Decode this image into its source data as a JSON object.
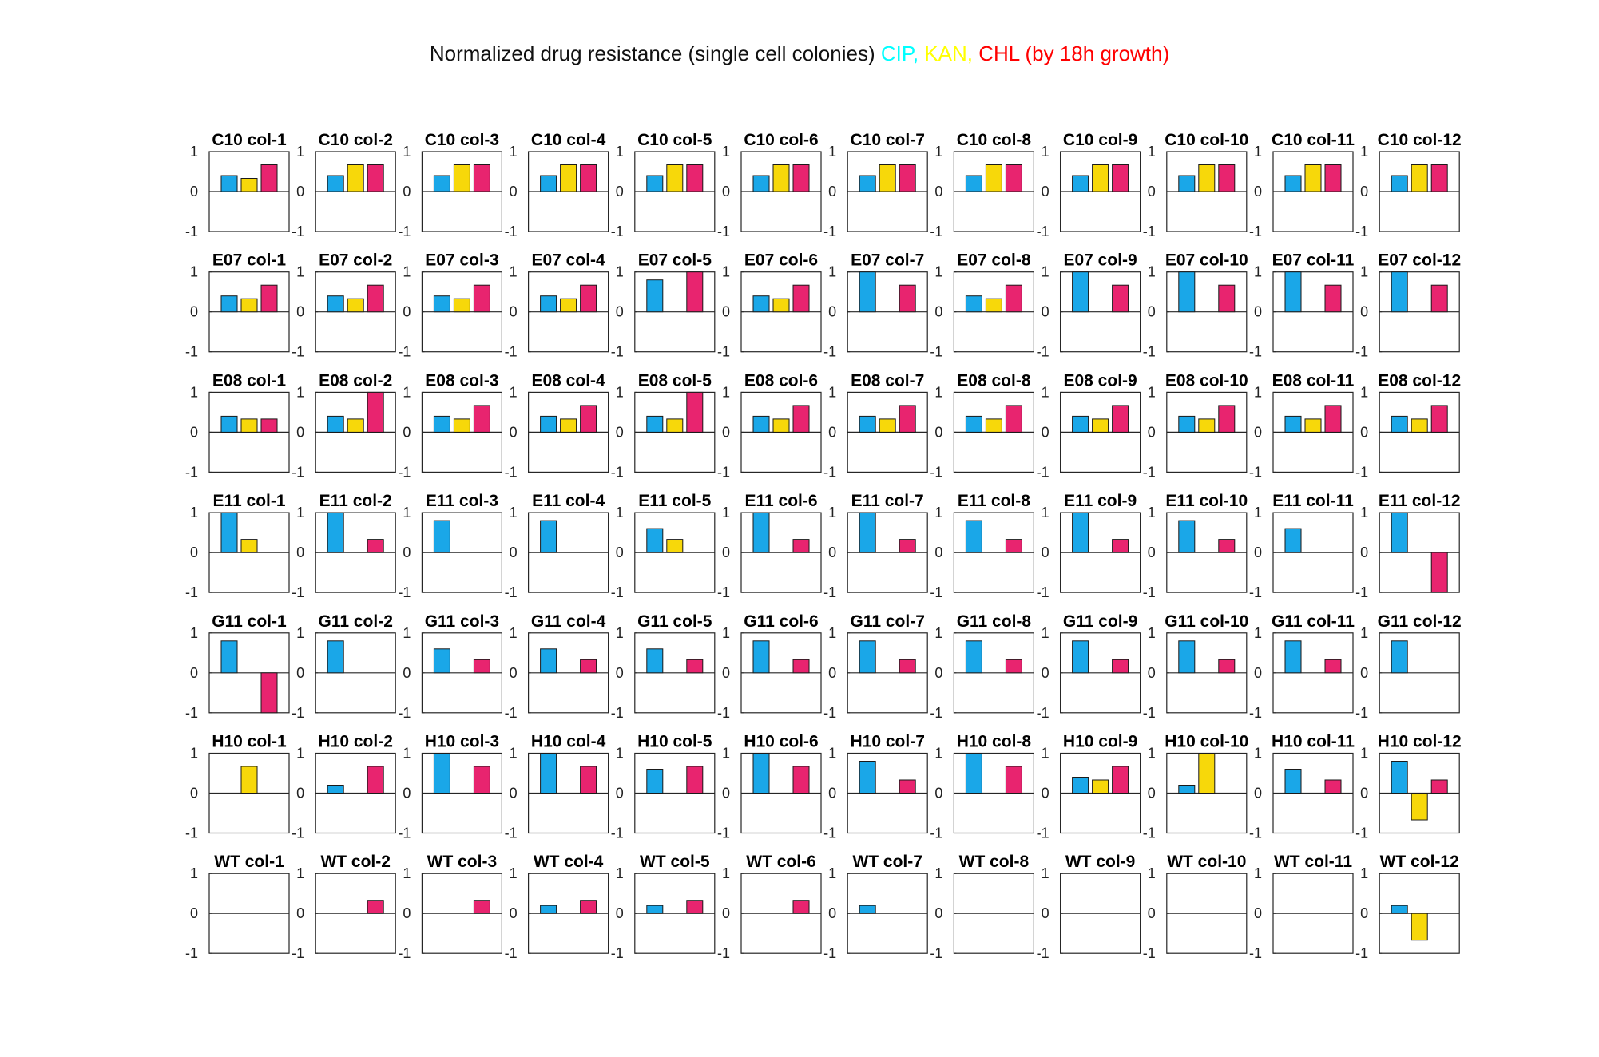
{
  "chart_data": [
    {
      "type": "bar",
      "title_parts": [
        {
          "text": "Normalized drug resistance (single cell colonies) ",
          "color": "#111111"
        },
        {
          "text": "CIP, ",
          "color": "#00ffff"
        },
        {
          "text": "KAN, ",
          "color": "#ffff00"
        },
        {
          "text": "CHL ",
          "color": "#ff0000"
        },
        {
          "text": "(by 18h growth)",
          "color": "#ff0000"
        }
      ],
      "series_colors": [
        "#1aa7e8",
        "#f7d80a",
        "#e8246f"
      ],
      "ylim": [
        -1,
        1
      ],
      "yticks": [
        1,
        0,
        -1
      ],
      "grid": false,
      "rows": [
        "C10",
        "E07",
        "E08",
        "E11",
        "G11",
        "H10",
        "WT"
      ],
      "col_prefix": "col-",
      "columns": 12,
      "values": {
        "C10": [
          [
            0.4,
            0.33,
            0.67
          ],
          [
            0.4,
            0.67,
            0.67
          ],
          [
            0.4,
            0.67,
            0.67
          ],
          [
            0.4,
            0.67,
            0.67
          ],
          [
            0.4,
            0.67,
            0.67
          ],
          [
            0.4,
            0.67,
            0.67
          ],
          [
            0.4,
            0.67,
            0.67
          ],
          [
            0.4,
            0.67,
            0.67
          ],
          [
            0.4,
            0.67,
            0.67
          ],
          [
            0.4,
            0.67,
            0.67
          ],
          [
            0.4,
            0.67,
            0.67
          ],
          [
            0.4,
            0.67,
            0.67
          ]
        ],
        "E07": [
          [
            0.4,
            0.33,
            0.67
          ],
          [
            0.4,
            0.33,
            0.67
          ],
          [
            0.4,
            0.33,
            0.67
          ],
          [
            0.4,
            0.33,
            0.67
          ],
          [
            0.8,
            0,
            1
          ],
          [
            0.4,
            0.33,
            0.67
          ],
          [
            1,
            0,
            0.67
          ],
          [
            0.4,
            0.33,
            0.67
          ],
          [
            1,
            0,
            0.67
          ],
          [
            1,
            0,
            0.67
          ],
          [
            1,
            0,
            0.67
          ],
          [
            1,
            0,
            0.67
          ]
        ],
        "E08": [
          [
            0.4,
            0.33,
            0.33
          ],
          [
            0.4,
            0.33,
            1
          ],
          [
            0.4,
            0.33,
            0.67
          ],
          [
            0.4,
            0.33,
            0.67
          ],
          [
            0.4,
            0.33,
            1
          ],
          [
            0.4,
            0.33,
            0.67
          ],
          [
            0.4,
            0.33,
            0.67
          ],
          [
            0.4,
            0.33,
            0.67
          ],
          [
            0.4,
            0.33,
            0.67
          ],
          [
            0.4,
            0.33,
            0.67
          ],
          [
            0.4,
            0.33,
            0.67
          ],
          [
            0.4,
            0.33,
            0.67
          ]
        ],
        "E11": [
          [
            1,
            0.33,
            0
          ],
          [
            1,
            0,
            0.33
          ],
          [
            0.8,
            0,
            0
          ],
          [
            0.8,
            0,
            0
          ],
          [
            0.6,
            0.33,
            0
          ],
          [
            1,
            0,
            0.33
          ],
          [
            1,
            0,
            0.33
          ],
          [
            0.8,
            0,
            0.33
          ],
          [
            1,
            0,
            0.33
          ],
          [
            0.8,
            0,
            0.33
          ],
          [
            0.6,
            0,
            0
          ],
          [
            1,
            0,
            -1
          ]
        ],
        "G11": [
          [
            0.8,
            0,
            -1
          ],
          [
            0.8,
            0,
            0
          ],
          [
            0.6,
            0,
            0.33
          ],
          [
            0.6,
            0,
            0.33
          ],
          [
            0.6,
            0,
            0.33
          ],
          [
            0.8,
            0,
            0.33
          ],
          [
            0.8,
            0,
            0.33
          ],
          [
            0.8,
            0,
            0.33
          ],
          [
            0.8,
            0,
            0.33
          ],
          [
            0.8,
            0,
            0.33
          ],
          [
            0.8,
            0,
            0.33
          ],
          [
            0.8,
            0,
            0
          ]
        ],
        "H10": [
          [
            0,
            0.67,
            0
          ],
          [
            0.2,
            0,
            0.67
          ],
          [
            1,
            0,
            0.67
          ],
          [
            1,
            0,
            0.67
          ],
          [
            0.6,
            0,
            0.67
          ],
          [
            1,
            0,
            0.67
          ],
          [
            0.8,
            0,
            0.33
          ],
          [
            1,
            0,
            0.67
          ],
          [
            0.4,
            0.33,
            0.67
          ],
          [
            0.2,
            1,
            0
          ],
          [
            0.6,
            0,
            0.33
          ],
          [
            0.8,
            -0.67,
            0.33
          ]
        ],
        "WT": [
          [
            0,
            0,
            0
          ],
          [
            0,
            0,
            0.33
          ],
          [
            0,
            0,
            0.33
          ],
          [
            0.2,
            0,
            0.33
          ],
          [
            0.2,
            0,
            0.33
          ],
          [
            0,
            0,
            0.33
          ],
          [
            0.2,
            0,
            0
          ],
          [
            0,
            0,
            0
          ],
          [
            0,
            0,
            0
          ],
          [
            0,
            0,
            0
          ],
          [
            0,
            0,
            0
          ],
          [
            0.2,
            -0.67,
            0
          ]
        ]
      }
    }
  ]
}
